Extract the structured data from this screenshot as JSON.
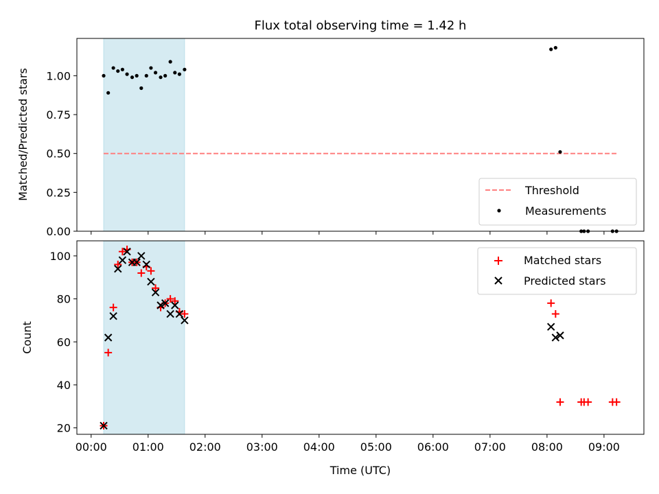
{
  "figure": {
    "title": "Flux total observing time = 1.42 h"
  },
  "chart_data": [
    {
      "type": "scatter",
      "panel": "top",
      "title": "Flux total observing time = 1.42 h",
      "xlabel": "",
      "ylabel": "Matched/Predicted stars",
      "x_unit": "hours (UTC)",
      "xlim": [
        -0.25,
        9.7
      ],
      "ylim": [
        0.0,
        1.24
      ],
      "yticks": [
        0.0,
        0.25,
        0.5,
        0.75,
        1.0
      ],
      "ytick_labels": [
        "0.00",
        "0.25",
        "0.50",
        "0.75",
        "1.00"
      ],
      "grid": false,
      "legend": "bottom-right",
      "shaded_span": {
        "x0": 0.22,
        "x1": 1.64,
        "color": "#add8e6"
      },
      "series": [
        {
          "name": "Threshold",
          "kind": "line",
          "style": "dashed",
          "color": "#ff7f7f",
          "x": [
            0.22,
            9.25
          ],
          "y": [
            0.5,
            0.5
          ]
        },
        {
          "name": "Measurements",
          "kind": "point",
          "color": "#000000",
          "x": [
            0.22,
            0.3,
            0.39,
            0.47,
            0.55,
            0.63,
            0.72,
            0.8,
            0.88,
            0.97,
            1.05,
            1.13,
            1.22,
            1.3,
            1.39,
            1.47,
            1.55,
            1.64,
            8.07,
            8.15,
            8.23,
            8.6,
            8.65,
            8.72,
            9.15,
            9.22
          ],
          "y": [
            1.0,
            0.89,
            1.05,
            1.03,
            1.04,
            1.01,
            0.99,
            1.0,
            0.92,
            1.0,
            1.05,
            1.02,
            0.99,
            1.0,
            1.09,
            1.02,
            1.01,
            1.04,
            1.17,
            1.18,
            0.51,
            0.0,
            0.0,
            0.0,
            0.0,
            0.0
          ]
        }
      ]
    },
    {
      "type": "scatter",
      "panel": "bottom",
      "xlabel": "Time (UTC)",
      "ylabel": "Count",
      "x_unit": "hours (UTC)",
      "xlim": [
        -0.25,
        9.7
      ],
      "ylim": [
        17,
        107
      ],
      "xticks": [
        0,
        1,
        2,
        3,
        4,
        5,
        6,
        7,
        8,
        9
      ],
      "xtick_labels": [
        "00:00",
        "01:00",
        "02:00",
        "03:00",
        "04:00",
        "05:00",
        "06:00",
        "07:00",
        "08:00",
        "09:00"
      ],
      "yticks": [
        20,
        40,
        60,
        80,
        100
      ],
      "ytick_labels": [
        "20",
        "40",
        "60",
        "80",
        "100"
      ],
      "grid": false,
      "legend": "top-right",
      "shaded_span": {
        "x0": 0.22,
        "x1": 1.64,
        "color": "#add8e6"
      },
      "series": [
        {
          "name": "Matched stars",
          "marker": "plus",
          "color": "#ff0000",
          "x": [
            0.22,
            0.3,
            0.39,
            0.47,
            0.55,
            0.63,
            0.72,
            0.8,
            0.88,
            0.97,
            1.05,
            1.13,
            1.22,
            1.3,
            1.39,
            1.47,
            1.55,
            1.64,
            8.07,
            8.15,
            8.23,
            8.6,
            8.65,
            8.72,
            9.15,
            9.22
          ],
          "y": [
            21,
            55,
            76,
            96,
            102,
            103,
            97,
            97,
            92,
            95,
            93,
            85,
            76,
            78,
            80,
            79,
            74,
            73,
            78,
            73,
            32,
            32,
            32,
            32,
            32,
            32
          ]
        },
        {
          "name": "Predicted stars",
          "marker": "x",
          "color": "#000000",
          "x": [
            0.22,
            0.3,
            0.39,
            0.47,
            0.55,
            0.63,
            0.72,
            0.8,
            0.88,
            0.97,
            1.05,
            1.13,
            1.22,
            1.3,
            1.39,
            1.47,
            1.55,
            1.64,
            8.07,
            8.15,
            8.23
          ],
          "y": [
            21,
            62,
            72,
            94,
            98,
            102,
            97,
            97,
            100,
            96,
            88,
            83,
            77,
            78,
            73,
            77,
            73,
            70,
            67,
            62,
            63
          ]
        }
      ]
    }
  ]
}
